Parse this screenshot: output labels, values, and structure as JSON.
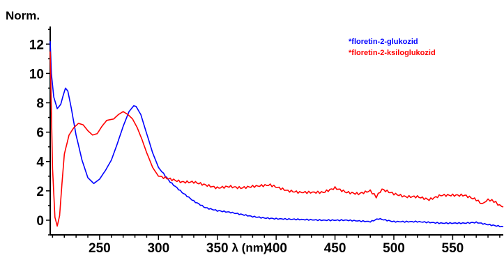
{
  "chart_data": {
    "type": "line",
    "title": "",
    "ylabel": "Norm.",
    "xlabel": "λ (nm)",
    "xlim": [
      208,
      593
    ],
    "ylim": [
      -1.0,
      13.2
    ],
    "xticks": [
      250,
      300,
      350,
      400,
      450,
      500,
      550
    ],
    "yticks": [
      0,
      2,
      4,
      6,
      8,
      10,
      12
    ],
    "xtick_labels": [
      "250",
      "300",
      "350",
      "400",
      "450",
      "500",
      "550"
    ],
    "ytick_labels": [
      "0",
      "2",
      "4",
      "6",
      "8",
      "10",
      "12"
    ],
    "grid": false,
    "legend_position": "top-right",
    "series": [
      {
        "name": "*floretin-2-glukozid",
        "color": "#0000ff",
        "x": [
          208,
          209,
          211,
          214,
          217,
          219,
          221,
          223,
          226,
          230,
          235,
          240,
          245,
          250,
          255,
          260,
          265,
          270,
          275,
          279,
          281,
          285,
          290,
          295,
          300,
          310,
          320,
          330,
          340,
          350,
          360,
          370,
          380,
          390,
          400,
          420,
          440,
          460,
          480,
          487,
          500,
          520,
          540,
          560,
          570,
          580,
          593
        ],
        "y": [
          12.2,
          10.0,
          8.4,
          7.6,
          7.9,
          8.5,
          9.0,
          8.8,
          7.6,
          5.8,
          4.1,
          2.9,
          2.5,
          2.8,
          3.4,
          4.1,
          5.2,
          6.4,
          7.4,
          7.8,
          7.75,
          7.2,
          5.9,
          4.6,
          3.6,
          2.6,
          1.9,
          1.3,
          0.85,
          0.65,
          0.55,
          0.4,
          0.25,
          0.15,
          0.1,
          0.05,
          0.0,
          0.0,
          -0.1,
          0.1,
          -0.1,
          -0.1,
          -0.2,
          -0.2,
          -0.15,
          -0.3,
          -0.45
        ]
      },
      {
        "name": "*floretin-2-ksiloglukozid",
        "color": "#ff0000",
        "x": [
          208,
          210,
          212,
          214,
          216,
          218,
          220,
          224,
          228,
          232,
          236,
          240,
          244,
          248,
          252,
          256,
          262,
          266,
          270,
          274,
          278,
          282,
          286,
          290,
          295,
          300,
          310,
          320,
          330,
          340,
          350,
          360,
          370,
          380,
          395,
          410,
          420,
          440,
          450,
          460,
          470,
          480,
          485,
          490,
          500,
          510,
          520,
          530,
          540,
          550,
          560,
          570,
          575,
          580,
          585,
          590,
          593
        ],
        "y": [
          11.5,
          3.5,
          0.2,
          -0.4,
          0.3,
          2.5,
          4.5,
          5.8,
          6.3,
          6.6,
          6.5,
          6.1,
          5.8,
          5.9,
          6.4,
          6.8,
          6.9,
          7.2,
          7.4,
          7.2,
          6.9,
          6.3,
          5.5,
          4.6,
          3.6,
          3.0,
          2.8,
          2.6,
          2.6,
          2.4,
          2.2,
          2.3,
          2.2,
          2.3,
          2.4,
          2.0,
          1.9,
          1.9,
          2.2,
          1.9,
          1.8,
          2.0,
          1.6,
          2.1,
          1.8,
          1.6,
          1.6,
          1.4,
          1.7,
          1.7,
          1.7,
          1.4,
          1.1,
          1.4,
          1.3,
          1.0,
          0.9
        ]
      }
    ]
  }
}
